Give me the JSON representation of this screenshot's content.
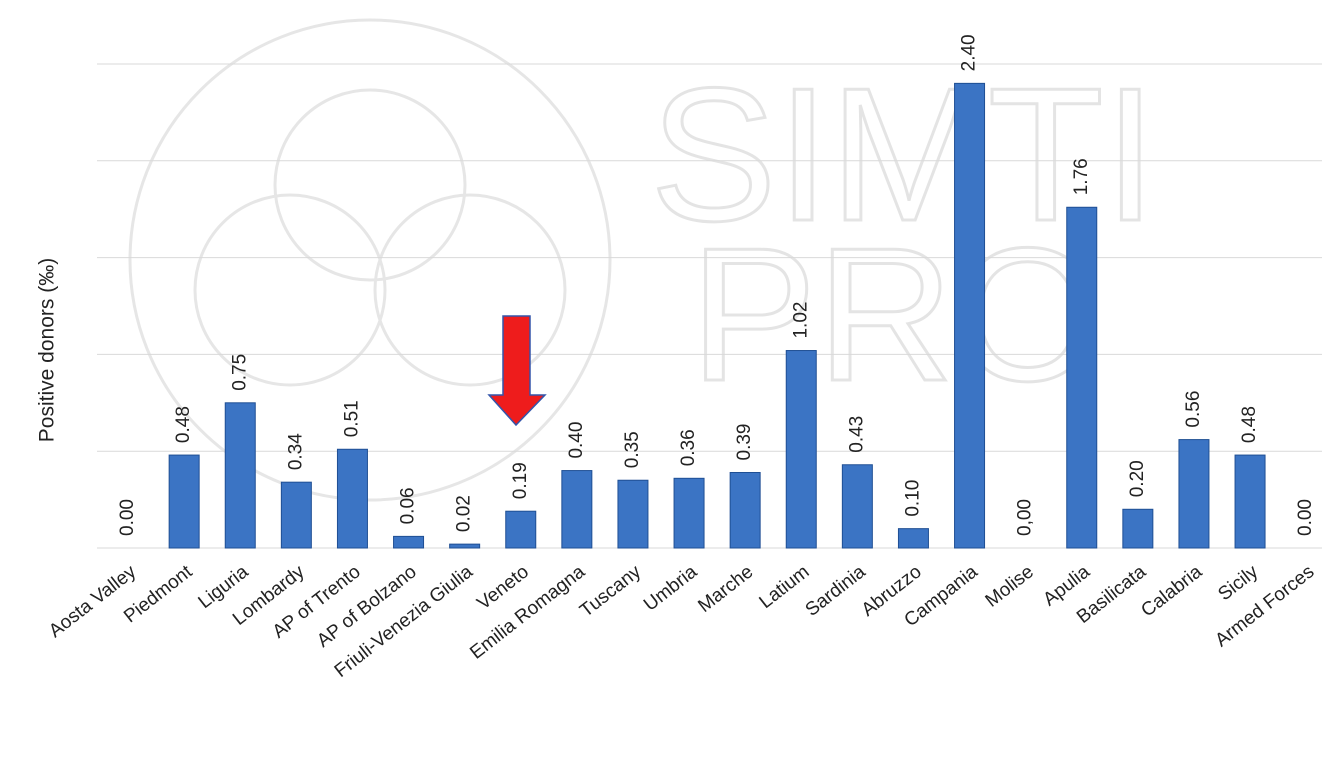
{
  "chart_data": {
    "type": "bar",
    "ylabel": "Positive donors (‰)",
    "watermark": [
      "SIMTI",
      "PRO"
    ],
    "categories": [
      "Aosta Valley",
      "Piedmont",
      "Liguria",
      "Lombardy",
      "AP of Trento",
      "AP of Bolzano",
      "Friuli-Venezia Giulia",
      "Veneto",
      "Emilia Romagna",
      "Tuscany",
      "Umbria",
      "Marche",
      "Latium",
      "Sardinia",
      "Abruzzo",
      "Campania",
      "Molise",
      "Apulia",
      "Basilicata",
      "Calabria",
      "Sicily",
      "Armed Forces"
    ],
    "values": [
      0,
      0.48,
      0.75,
      0.34,
      0.51,
      0.06,
      0.02,
      0.19,
      0.4,
      0.35,
      0.36,
      0.39,
      1.02,
      0.43,
      0.1,
      2.4,
      0,
      1.76,
      0.2,
      0.56,
      0.48,
      0
    ],
    "value_labels": [
      "0.00",
      "0.48",
      "0.75",
      "0.34",
      "0.51",
      "0.06",
      "0.02",
      "0.19",
      "0.40",
      "0.35",
      "0.36",
      "0.39",
      "1.02",
      "0.43",
      "0.10",
      "2.40",
      "0,00",
      "1.76",
      "0.20",
      "0.56",
      "0.48",
      "0.00"
    ],
    "color": "#3b74c4",
    "ylim": [
      0,
      2.5
    ],
    "yticks": [
      0,
      0.5,
      1,
      1.5,
      2,
      2.5
    ],
    "grid": true
  }
}
